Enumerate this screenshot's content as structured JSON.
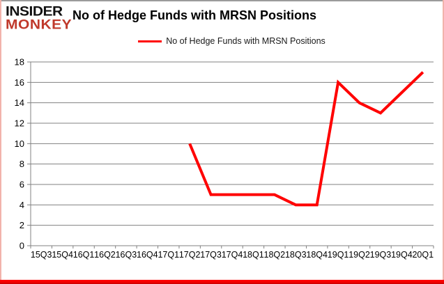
{
  "logo": {
    "line1": "INSIDER",
    "line2": "MONKEY"
  },
  "header": {
    "title": "No of Hedge Funds with MRSN Positions"
  },
  "legend": {
    "label": "No of Hedge Funds with MRSN Positions"
  },
  "colors": {
    "series_line": "#ff0000",
    "gridline": "#808080",
    "axis": "#808080",
    "logo_black": "#111111",
    "logo_red": "#c0392b",
    "border_top": "#9b9b9b",
    "border_sides": "#f2b3ab",
    "border_bottom": "#ff0000",
    "text": "#000000"
  },
  "chart_data": {
    "type": "line",
    "title": "No of Hedge Funds with MRSN Positions",
    "xlabel": "",
    "ylabel": "",
    "categories": [
      "15Q3",
      "15Q4",
      "16Q1",
      "16Q2",
      "16Q3",
      "16Q4",
      "17Q1",
      "17Q2",
      "17Q3",
      "17Q4",
      "18Q1",
      "18Q2",
      "18Q3",
      "18Q4",
      "19Q1",
      "19Q2",
      "19Q3",
      "19Q4",
      "20Q1"
    ],
    "series": [
      {
        "name": "No of Hedge Funds with MRSN Positions",
        "color": "#ff0000",
        "values": [
          null,
          null,
          null,
          null,
          null,
          null,
          null,
          10,
          5,
          5,
          5,
          5,
          4,
          4,
          16,
          14,
          13,
          15,
          17
        ]
      }
    ],
    "ylim": [
      0,
      18
    ],
    "yticks": [
      0,
      2,
      4,
      6,
      8,
      10,
      12,
      14,
      16,
      18
    ],
    "grid": true,
    "legend_position": "top"
  }
}
